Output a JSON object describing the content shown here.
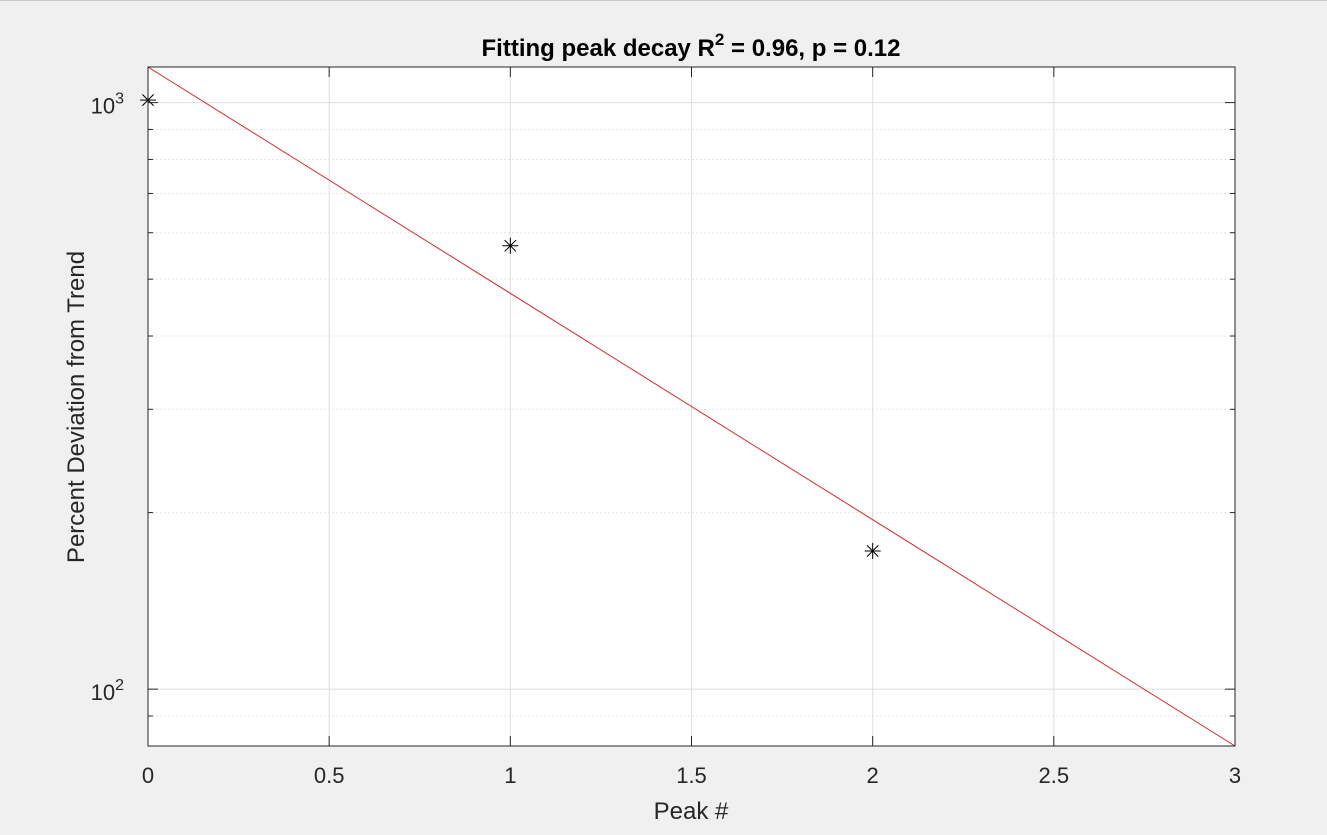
{
  "figure": {
    "background": "#f0f0f0",
    "axes_background": "#ffffff"
  },
  "chart_data": {
    "type": "scatter",
    "title": "Fitting peak decay R",
    "title_superscript": "2",
    "title_suffix": " = 0.96, p = 0.12",
    "xlabel": "Peak #",
    "ylabel": "Percent Deviation from Trend",
    "xlim": [
      0,
      3
    ],
    "ylim": [
      80,
      1150
    ],
    "yscale": "log",
    "grid": true,
    "minor_grid": true,
    "x_ticks": [
      {
        "value": 0,
        "label": "0"
      },
      {
        "value": 0.5,
        "label": "0.5"
      },
      {
        "value": 1,
        "label": "1"
      },
      {
        "value": 1.5,
        "label": "1.5"
      },
      {
        "value": 2,
        "label": "2"
      },
      {
        "value": 2.5,
        "label": "2.5"
      },
      {
        "value": 3,
        "label": "3"
      }
    ],
    "y_ticks": [
      {
        "value": 100,
        "base": "10",
        "exponent": "2"
      },
      {
        "value": 1000,
        "base": "10",
        "exponent": "3"
      }
    ],
    "series": [
      {
        "marker": "asterisk",
        "color": "#000000",
        "x": [
          0,
          1,
          2
        ],
        "y": [
          1010,
          570,
          172
        ]
      },
      {
        "line": "solid",
        "color": "#d62728",
        "x": [
          0,
          3
        ],
        "y": [
          1150,
          80
        ]
      }
    ]
  }
}
